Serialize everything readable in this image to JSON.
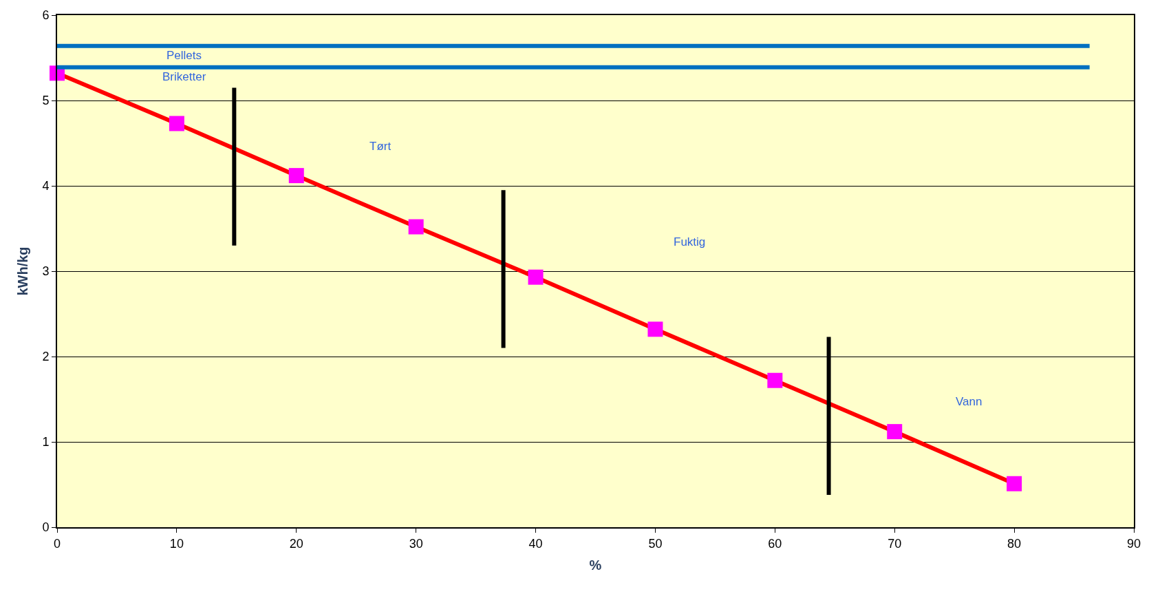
{
  "chart_data": {
    "type": "line",
    "xlabel": "%",
    "ylabel": "kWh/kg",
    "xlim": [
      0,
      90
    ],
    "xticks": [
      0,
      10,
      20,
      30,
      40,
      50,
      60,
      70,
      80,
      90
    ],
    "ylim": [
      0,
      6
    ],
    "yticks": [
      0,
      1,
      2,
      3,
      4,
      5,
      6
    ],
    "grid": "y",
    "legend": false,
    "series": [
      {
        "color": "#ff0000",
        "colors": [
          "#ff00ff",
          "#ff00ff",
          "#ff00ff",
          "#ff00ff",
          "#ff00ff",
          "#ff00ff",
          "#ff00ff",
          "#ff00ff",
          "#ff00ff"
        ],
        "marker": "square",
        "x": [
          0,
          10,
          20,
          30,
          40,
          50,
          60,
          70,
          80
        ],
        "values": [
          5.32,
          4.73,
          4.12,
          3.52,
          2.93,
          2.32,
          1.72,
          1.12,
          0.51
        ]
      },
      {
        "name": "Pellets",
        "color": "#0070c0",
        "marker": "none",
        "x": [
          0,
          86.3
        ],
        "values": [
          5.64,
          5.64
        ]
      },
      {
        "name": "Briketter",
        "color": "#0070c0",
        "marker": "none",
        "x": [
          0,
          86.3
        ],
        "values": [
          5.39,
          5.39
        ]
      },
      {
        "color": "#000000",
        "marker": "none",
        "x": [
          14.8,
          14.8
        ],
        "values": [
          3.3,
          5.15
        ]
      },
      {
        "color": "#000000",
        "marker": "none",
        "x": [
          37.3,
          37.3
        ],
        "values": [
          2.1,
          3.95
        ]
      },
      {
        "color": "#000000",
        "marker": "none",
        "x": [
          64.5,
          64.5
        ],
        "values": [
          0.38,
          2.23
        ]
      }
    ],
    "annotations": [
      "Tørt",
      "Fuktig",
      "Vann"
    ]
  }
}
